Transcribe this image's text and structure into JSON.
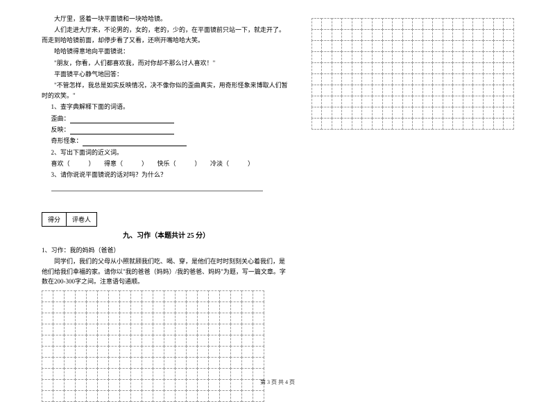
{
  "passage": {
    "p1": "大厅里，竖着一块平面镜和一块哈哈镜。",
    "p2": "人们走进大厅来，不论男的，女的，老的，少的，在平面镜前只站一下，就走开了。而走到哈哈镜前面，却停步看了又看，还咧开嘴哈哈大笑。",
    "p3": "哈哈镜得意地向平面镜说：",
    "p4": "\"朋友，你看，人们都喜欢我，而对你却不那么讨人喜欢！\"",
    "p5": "平面镜平心静气地回答：",
    "p6": "\"不管怎样，我总是如实反映情况，决不像你似的歪曲真实，用奇形怪象来博取人们暂时的欢笑。\""
  },
  "questions": {
    "q1": "1、查字典解释下面的词语。",
    "q1a": "歪曲：",
    "q1b": "反映：",
    "q1c": "奇形怪象：",
    "q2": "2、写出下面词的近义词。",
    "q2line": "喜欢（　　　）　　得意（　　　）　　快乐（　　　）　　冷淡（　　　）",
    "q3": "3、请你说说平面镜说的话对吗？为什么？"
  },
  "scorebox": {
    "label_score": "得分",
    "label_reviewer": "评卷人"
  },
  "section": {
    "title": "九、习作（本题共计 25 分）"
  },
  "essay": {
    "e1": "1、习作：我的妈妈（爸爸）",
    "e2": "同学们，我们的父母从小照就顾我们吃、喝、穿，是他们在时时刻刻关心着我们，是他们给我们幸福的家。请你以\"我的爸爸（妈妈）/我的爸爸、妈妈\"为题，写一篇文章。字数在200-300字之间。注意语句通顺。"
  },
  "grid": {
    "left_rows": 10,
    "left_cols": 20,
    "right_rows": 10,
    "right_cols": 20,
    "border_color": "#999999",
    "cell_size": 17
  },
  "footer": "第 3 页 共 4 页"
}
